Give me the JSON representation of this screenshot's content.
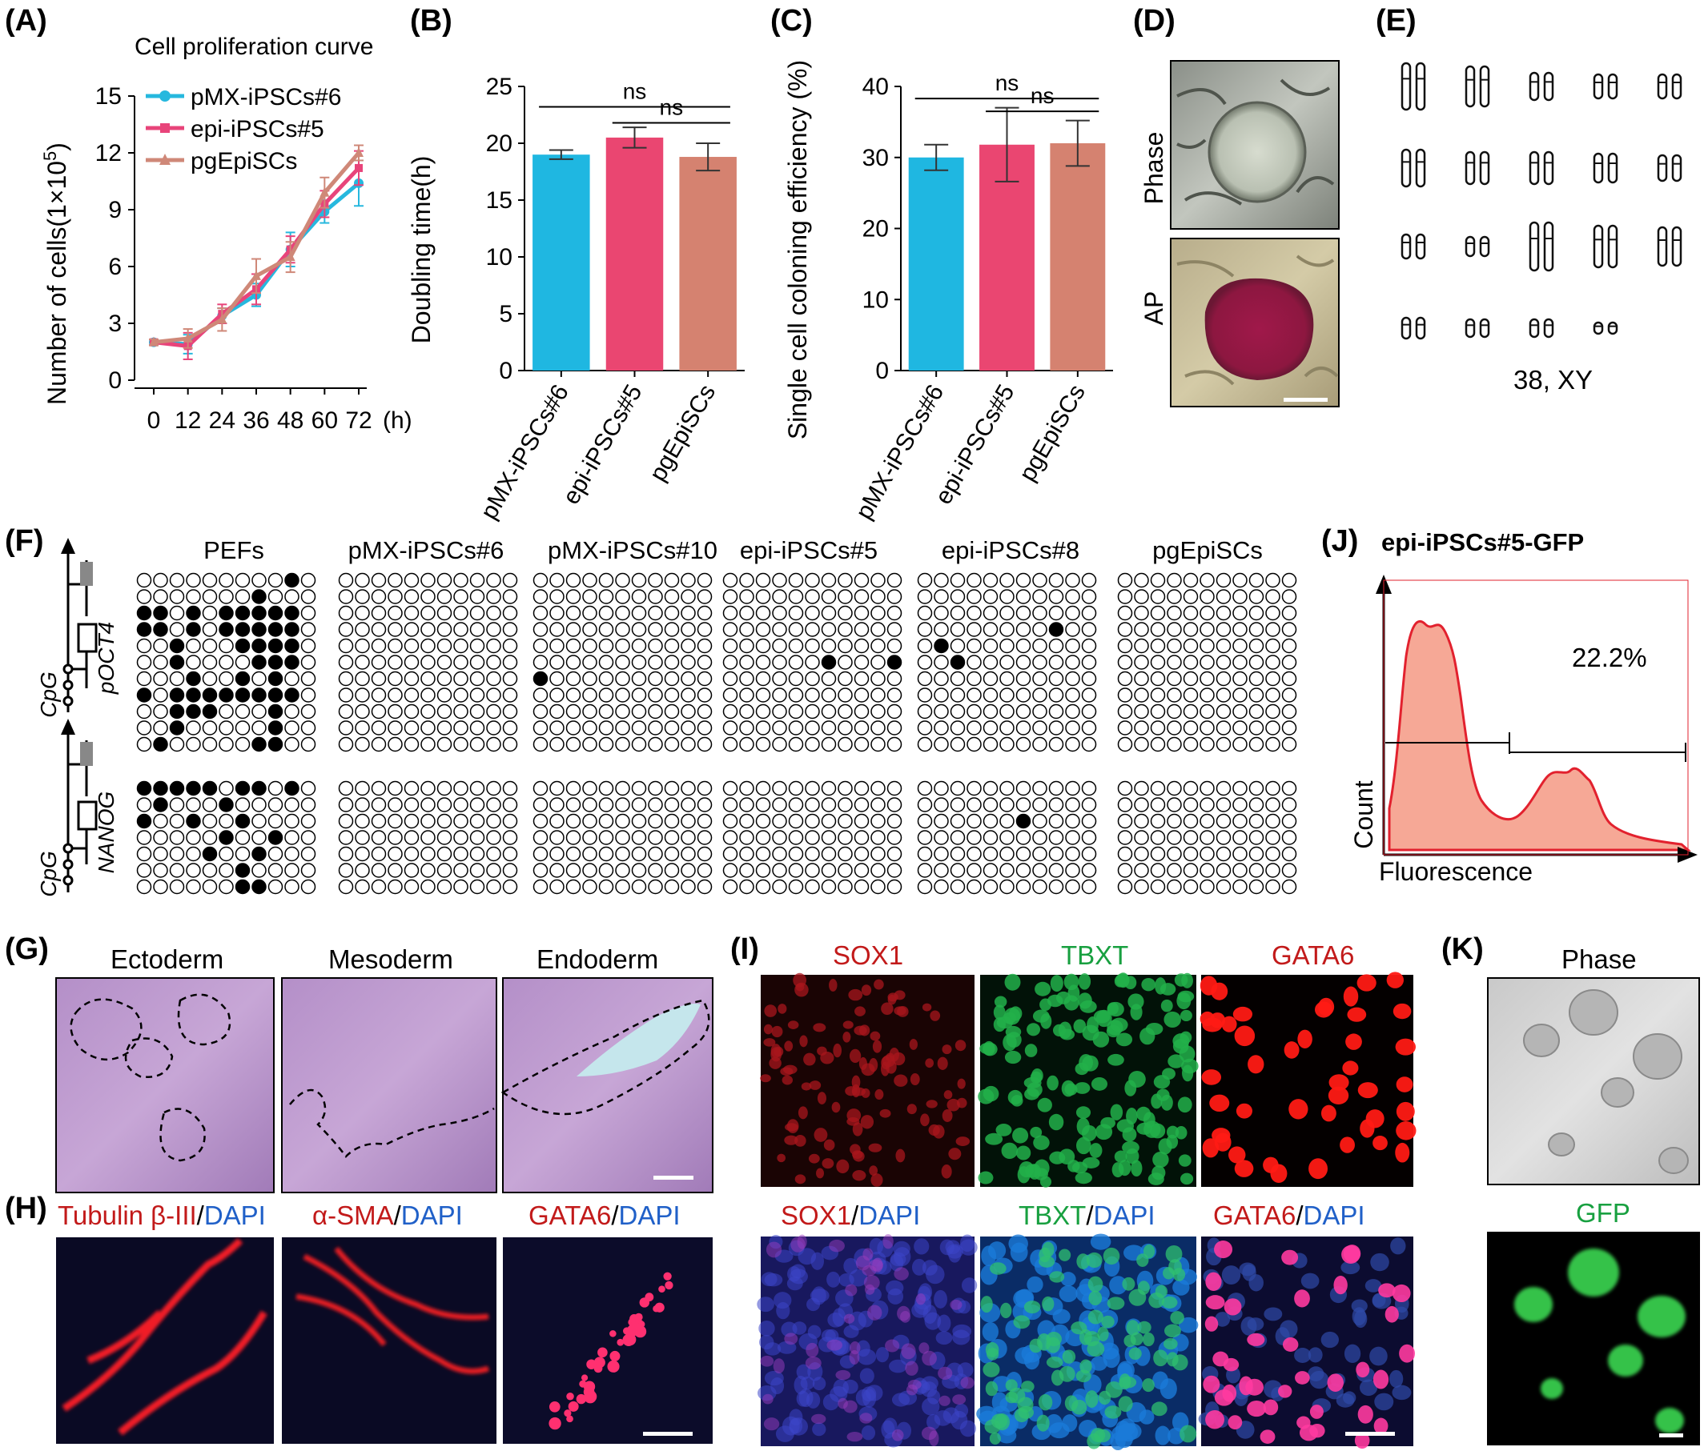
{
  "panels": {
    "A": "(A)",
    "B": "(B)",
    "C": "(C)",
    "D": "(D)",
    "E": "(E)",
    "F": "(F)",
    "G": "(G)",
    "H": "(H)",
    "I": "(I)",
    "J": "(J)",
    "K": "(K)"
  },
  "chart_data": [
    {
      "type": "line",
      "title": "Cell proliferation curve",
      "xlabel": "(h)",
      "ylabel": "Number of cells(1×10",
      "ylabel_sup": "5",
      "ylabel_close": ")",
      "x": [
        0,
        12,
        24,
        36,
        48,
        60,
        72
      ],
      "xlim": [
        0,
        72
      ],
      "ylim": [
        0,
        15
      ],
      "yticks": [
        0,
        3,
        6,
        9,
        12,
        15
      ],
      "legend": "top-left",
      "series": [
        {
          "name": "pMX-iPSCs#6",
          "color": "#26b8de",
          "marker": "circle",
          "values": [
            2.0,
            1.9,
            3.4,
            4.5,
            6.9,
            8.9,
            10.4
          ],
          "err": [
            0.15,
            0.5,
            0.4,
            0.6,
            0.9,
            0.6,
            1.2
          ]
        },
        {
          "name": "epi-iPSCs#5",
          "color": "#e8447a",
          "marker": "square",
          "values": [
            2.0,
            1.8,
            3.5,
            4.8,
            6.9,
            9.3,
            11.2
          ],
          "err": [
            0.15,
            0.7,
            0.5,
            0.8,
            0.7,
            0.7,
            0.9
          ]
        },
        {
          "name": "pgEpiSCs",
          "color": "#cf8878",
          "marker": "triangle",
          "values": [
            2.0,
            2.2,
            3.2,
            5.5,
            6.5,
            9.9,
            12.0
          ],
          "err": [
            0.15,
            0.5,
            0.6,
            0.9,
            0.8,
            0.8,
            0.4
          ]
        }
      ]
    },
    {
      "type": "bar",
      "ylabel": "Doubling time(h)",
      "categories": [
        "pMX-iPSCs#6",
        "epi-iPSCs#5",
        "pgEpiSCs"
      ],
      "values": [
        19.0,
        20.5,
        18.8
      ],
      "err": [
        0.4,
        0.9,
        1.2
      ],
      "colors": [
        "#1fb7e1",
        "#ea4671",
        "#d58270"
      ],
      "ylim": [
        0,
        25
      ],
      "yticks": [
        0,
        5,
        10,
        15,
        20,
        25
      ],
      "annotations": [
        {
          "from": 0,
          "to": 2,
          "label": "ns",
          "y": 23.2
        },
        {
          "from": 1,
          "to": 2,
          "label": "ns",
          "y": 21.8
        }
      ]
    },
    {
      "type": "bar",
      "ylabel": "Single cell coloning efficiency (%)",
      "categories": [
        "pMX-iPSCs#6",
        "epi-iPSCs#5",
        "pgEpiSCs"
      ],
      "values": [
        30.0,
        31.8,
        32.0
      ],
      "err": [
        1.8,
        5.2,
        3.2
      ],
      "colors": [
        "#1fb7e1",
        "#ea4671",
        "#d58270"
      ],
      "ylim": [
        0,
        40
      ],
      "yticks": [
        0,
        10,
        20,
        30,
        40
      ],
      "annotations": [
        {
          "from": 0,
          "to": 2,
          "label": "ns",
          "y": 38.3
        },
        {
          "from": 1,
          "to": 2,
          "label": "ns",
          "y": 36.5
        }
      ]
    }
  ],
  "panel_D": {
    "phase": "Phase",
    "ap": "AP"
  },
  "panel_E": {
    "label": "38, XY"
  },
  "panel_F": {
    "columns": [
      "PEFs",
      "pMX-iPSCs#6",
      "pMX-iPSCs#10",
      "epi-iPSCs#5",
      "epi-iPSCs#8",
      "pgEpiSCs"
    ],
    "gene1": "pOCT4",
    "gene2": "NANOG",
    "cpg": "CpG",
    "oct4_methylated": [
      [
        "0-9",
        "1-7",
        "2-0",
        "2-1",
        "2-3",
        "2-5",
        "2-6",
        "2-7",
        "2-8",
        "2-9",
        "3-0",
        "3-1",
        "3-3",
        "3-5",
        "3-6",
        "3-7",
        "3-8",
        "3-9",
        "4-2",
        "4-6",
        "4-7",
        "4-8",
        "4-9",
        "5-2",
        "5-7",
        "5-8",
        "5-9",
        "6-3",
        "6-6",
        "6-8",
        "7-0",
        "7-2",
        "7-3",
        "7-4",
        "7-5",
        "7-6",
        "7-7",
        "7-8",
        "7-9",
        "8-2",
        "8-3",
        "8-4",
        "8-8",
        "9-2",
        "9-8",
        "10-1",
        "10-7",
        "10-8"
      ],
      [],
      [
        "6-0"
      ],
      [
        "5-6",
        "5-10"
      ],
      [
        "3-8",
        "4-1",
        "5-2"
      ],
      []
    ],
    "nanog_methylated": [
      [
        "0-0",
        "0-1",
        "0-2",
        "0-3",
        "0-4",
        "0-6",
        "0-7",
        "0-9",
        "1-1",
        "1-5",
        "2-0",
        "2-3",
        "2-6",
        "3-5",
        "3-8",
        "4-4",
        "4-7",
        "5-6",
        "6-6",
        "6-7"
      ],
      [],
      [],
      [],
      [
        "2-6"
      ],
      []
    ]
  },
  "panel_G": {
    "labels": [
      "Ectoderm",
      "Mesoderm",
      "Endoderm"
    ]
  },
  "panel_H": {
    "l1a": "Tubulin β-III",
    "l2a": "α-SMA",
    "l3a": "GATA6",
    "sep": "/",
    "dapi": "DAPI"
  },
  "panel_I": {
    "top": [
      "SOX1",
      "TBXT",
      "GATA6"
    ],
    "bottom": [
      "SOX1",
      "TBXT",
      "GATA6"
    ],
    "sep": "/",
    "dapi": "DAPI"
  },
  "panel_J": {
    "title": "epi-iPSCs#5-GFP",
    "percent": "22.2%",
    "ylabel": "Count",
    "xlabel": "Fluorescence"
  },
  "panel_K": {
    "phase": "Phase",
    "gfp": "GFP"
  }
}
